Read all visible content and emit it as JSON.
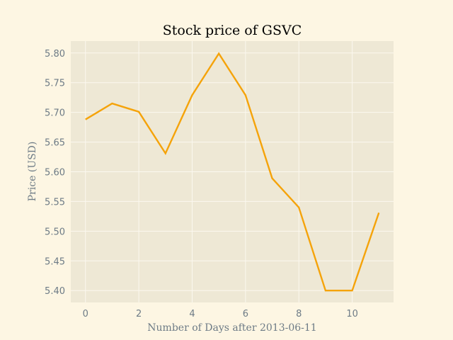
{
  "chart_data": {
    "type": "line",
    "title": "Stock price of GSVC",
    "xlabel": "Number of Days after 2013-06-11",
    "ylabel": "Price (USD)",
    "x": [
      0,
      1,
      2,
      3,
      4,
      5,
      6,
      7,
      8,
      9,
      10,
      11
    ],
    "series": [
      {
        "values": [
          5.688,
          5.715,
          5.701,
          5.631,
          5.729,
          5.799,
          5.729,
          5.589,
          5.54,
          5.4,
          5.4,
          5.531
        ],
        "color": "#f5a30a"
      }
    ],
    "xlim": [
      -0.55,
      11.55
    ],
    "ylim": [
      5.38,
      5.82
    ],
    "xticks": [
      0,
      2,
      4,
      6,
      8,
      10
    ],
    "xtick_labels": [
      "0",
      "2",
      "4",
      "6",
      "8",
      "10"
    ],
    "yticks": [
      5.4,
      5.45,
      5.5,
      5.55,
      5.6,
      5.65,
      5.7,
      5.75,
      5.8
    ],
    "ytick_labels": [
      "5.40",
      "5.45",
      "5.50",
      "5.55",
      "5.60",
      "5.65",
      "5.70",
      "5.75",
      "5.80"
    ],
    "grid": true,
    "legend": "none",
    "colors": {
      "background": "#fdf6e3",
      "plot_background": "#eee8d5",
      "grid": "#fbf8ef",
      "text": "#6d7b86",
      "title": "#000000"
    }
  }
}
